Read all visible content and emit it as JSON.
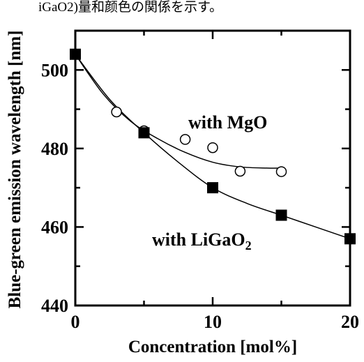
{
  "caption_fragment": "iGaO2)量和颜色の関係を示す。",
  "chart_data": {
    "type": "scatter",
    "xlabel": "Concentration [mol%]",
    "ylabel": "Blue-green emission wavelength [nm]",
    "xlim": [
      0,
      20
    ],
    "ylim": [
      440,
      510
    ],
    "xticks": [
      0,
      10,
      20
    ],
    "yticks": [
      440,
      460,
      480,
      500
    ],
    "grid": false,
    "series": [
      {
        "name": "with MgO",
        "marker": "open-circle",
        "x": [
          0,
          3,
          5,
          8,
          10,
          12,
          15
        ],
        "y": [
          504,
          489.3,
          484.5,
          482.3,
          480.2,
          474.2,
          474.1
        ],
        "fit_x": [
          0,
          2,
          4,
          6,
          8,
          10,
          12,
          14,
          15
        ],
        "fit_y": [
          504,
          494,
          487,
          482.5,
          479,
          476.5,
          475.3,
          475,
          475
        ]
      },
      {
        "name": "with LiGaO",
        "name_subscript": "2",
        "marker": "filled-square",
        "x": [
          0,
          5,
          10,
          15,
          20
        ],
        "y": [
          504,
          484,
          470,
          463,
          457
        ],
        "fit_x": [
          0,
          2.5,
          5,
          7.5,
          10,
          12.5,
          15,
          17.5,
          20
        ],
        "fit_y": [
          504,
          492.5,
          484,
          476.5,
          470,
          466,
          463,
          460,
          457
        ]
      }
    ]
  }
}
